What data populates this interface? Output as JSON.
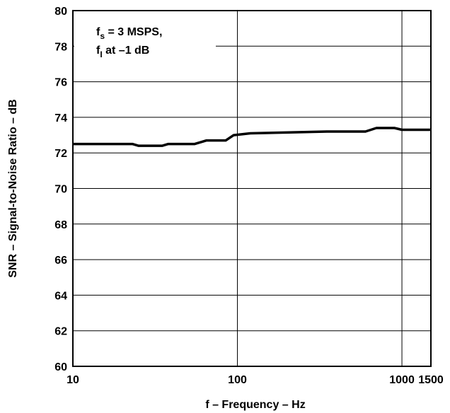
{
  "chart_data": {
    "type": "line",
    "xlabel": "f – Frequency – Hz",
    "ylabel": "SNR – Signal-to-Noise Ratio – dB",
    "xscale": "log",
    "xlim": [
      10,
      1500
    ],
    "ylim": [
      60,
      80
    ],
    "grid": true,
    "x_ticks": [
      10,
      100,
      1000,
      1500
    ],
    "x_tick_labels": [
      "10",
      "100",
      "1000",
      "1500"
    ],
    "y_ticks": [
      60,
      62,
      64,
      66,
      68,
      70,
      72,
      74,
      76,
      78,
      80
    ],
    "y_tick_labels": [
      "60",
      "62",
      "64",
      "66",
      "68",
      "70",
      "72",
      "74",
      "76",
      "78",
      "80"
    ],
    "annotation": {
      "line1_base": "f",
      "line1_sub": "s",
      "line1_rest": " = 3 MSPS,",
      "line2_base": "f",
      "line2_sub": "I",
      "line2_rest": " at –1 dB"
    },
    "series": [
      {
        "x": [
          10,
          23,
          25,
          35,
          38,
          55,
          65,
          85,
          95,
          120,
          350,
          600,
          700,
          900,
          1000,
          1500
        ],
        "y": [
          72.5,
          72.5,
          72.4,
          72.4,
          72.5,
          72.5,
          72.7,
          72.7,
          73.0,
          73.1,
          73.2,
          73.2,
          73.4,
          73.4,
          73.3,
          73.3
        ]
      }
    ]
  }
}
